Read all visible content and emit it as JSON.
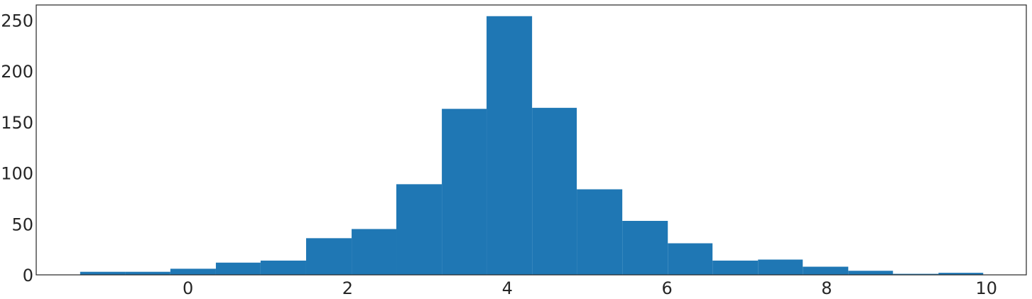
{
  "chart_data": {
    "type": "bar",
    "subtype": "histogram",
    "title": "",
    "xlabel": "",
    "ylabel": "",
    "bar_color": "#1f77b4",
    "grid": false,
    "xlim": [
      -1.9,
      10.5
    ],
    "ylim": [
      0,
      265
    ],
    "xticks": [
      0,
      2,
      4,
      6,
      8,
      10
    ],
    "yticks": [
      0,
      50,
      100,
      150,
      200,
      250
    ],
    "bins": [
      {
        "x0": -1.35,
        "x1": -0.78,
        "count": 3
      },
      {
        "x0": -0.78,
        "x1": -0.22,
        "count": 3
      },
      {
        "x0": -0.22,
        "x1": 0.35,
        "count": 6
      },
      {
        "x0": 0.35,
        "x1": 0.91,
        "count": 12
      },
      {
        "x0": 0.91,
        "x1": 1.48,
        "count": 14
      },
      {
        "x0": 1.48,
        "x1": 2.05,
        "count": 36
      },
      {
        "x0": 2.05,
        "x1": 2.61,
        "count": 45
      },
      {
        "x0": 2.61,
        "x1": 3.18,
        "count": 89
      },
      {
        "x0": 3.18,
        "x1": 3.74,
        "count": 163
      },
      {
        "x0": 3.74,
        "x1": 4.31,
        "count": 254
      },
      {
        "x0": 4.31,
        "x1": 4.87,
        "count": 164
      },
      {
        "x0": 4.87,
        "x1": 5.44,
        "count": 84
      },
      {
        "x0": 5.44,
        "x1": 6.01,
        "count": 53
      },
      {
        "x0": 6.01,
        "x1": 6.57,
        "count": 31
      },
      {
        "x0": 6.57,
        "x1": 7.14,
        "count": 14
      },
      {
        "x0": 7.14,
        "x1": 7.7,
        "count": 15
      },
      {
        "x0": 7.7,
        "x1": 8.27,
        "count": 8
      },
      {
        "x0": 8.27,
        "x1": 8.83,
        "count": 4
      },
      {
        "x0": 8.83,
        "x1": 9.4,
        "count": 1
      },
      {
        "x0": 9.4,
        "x1": 9.96,
        "count": 2
      }
    ]
  }
}
